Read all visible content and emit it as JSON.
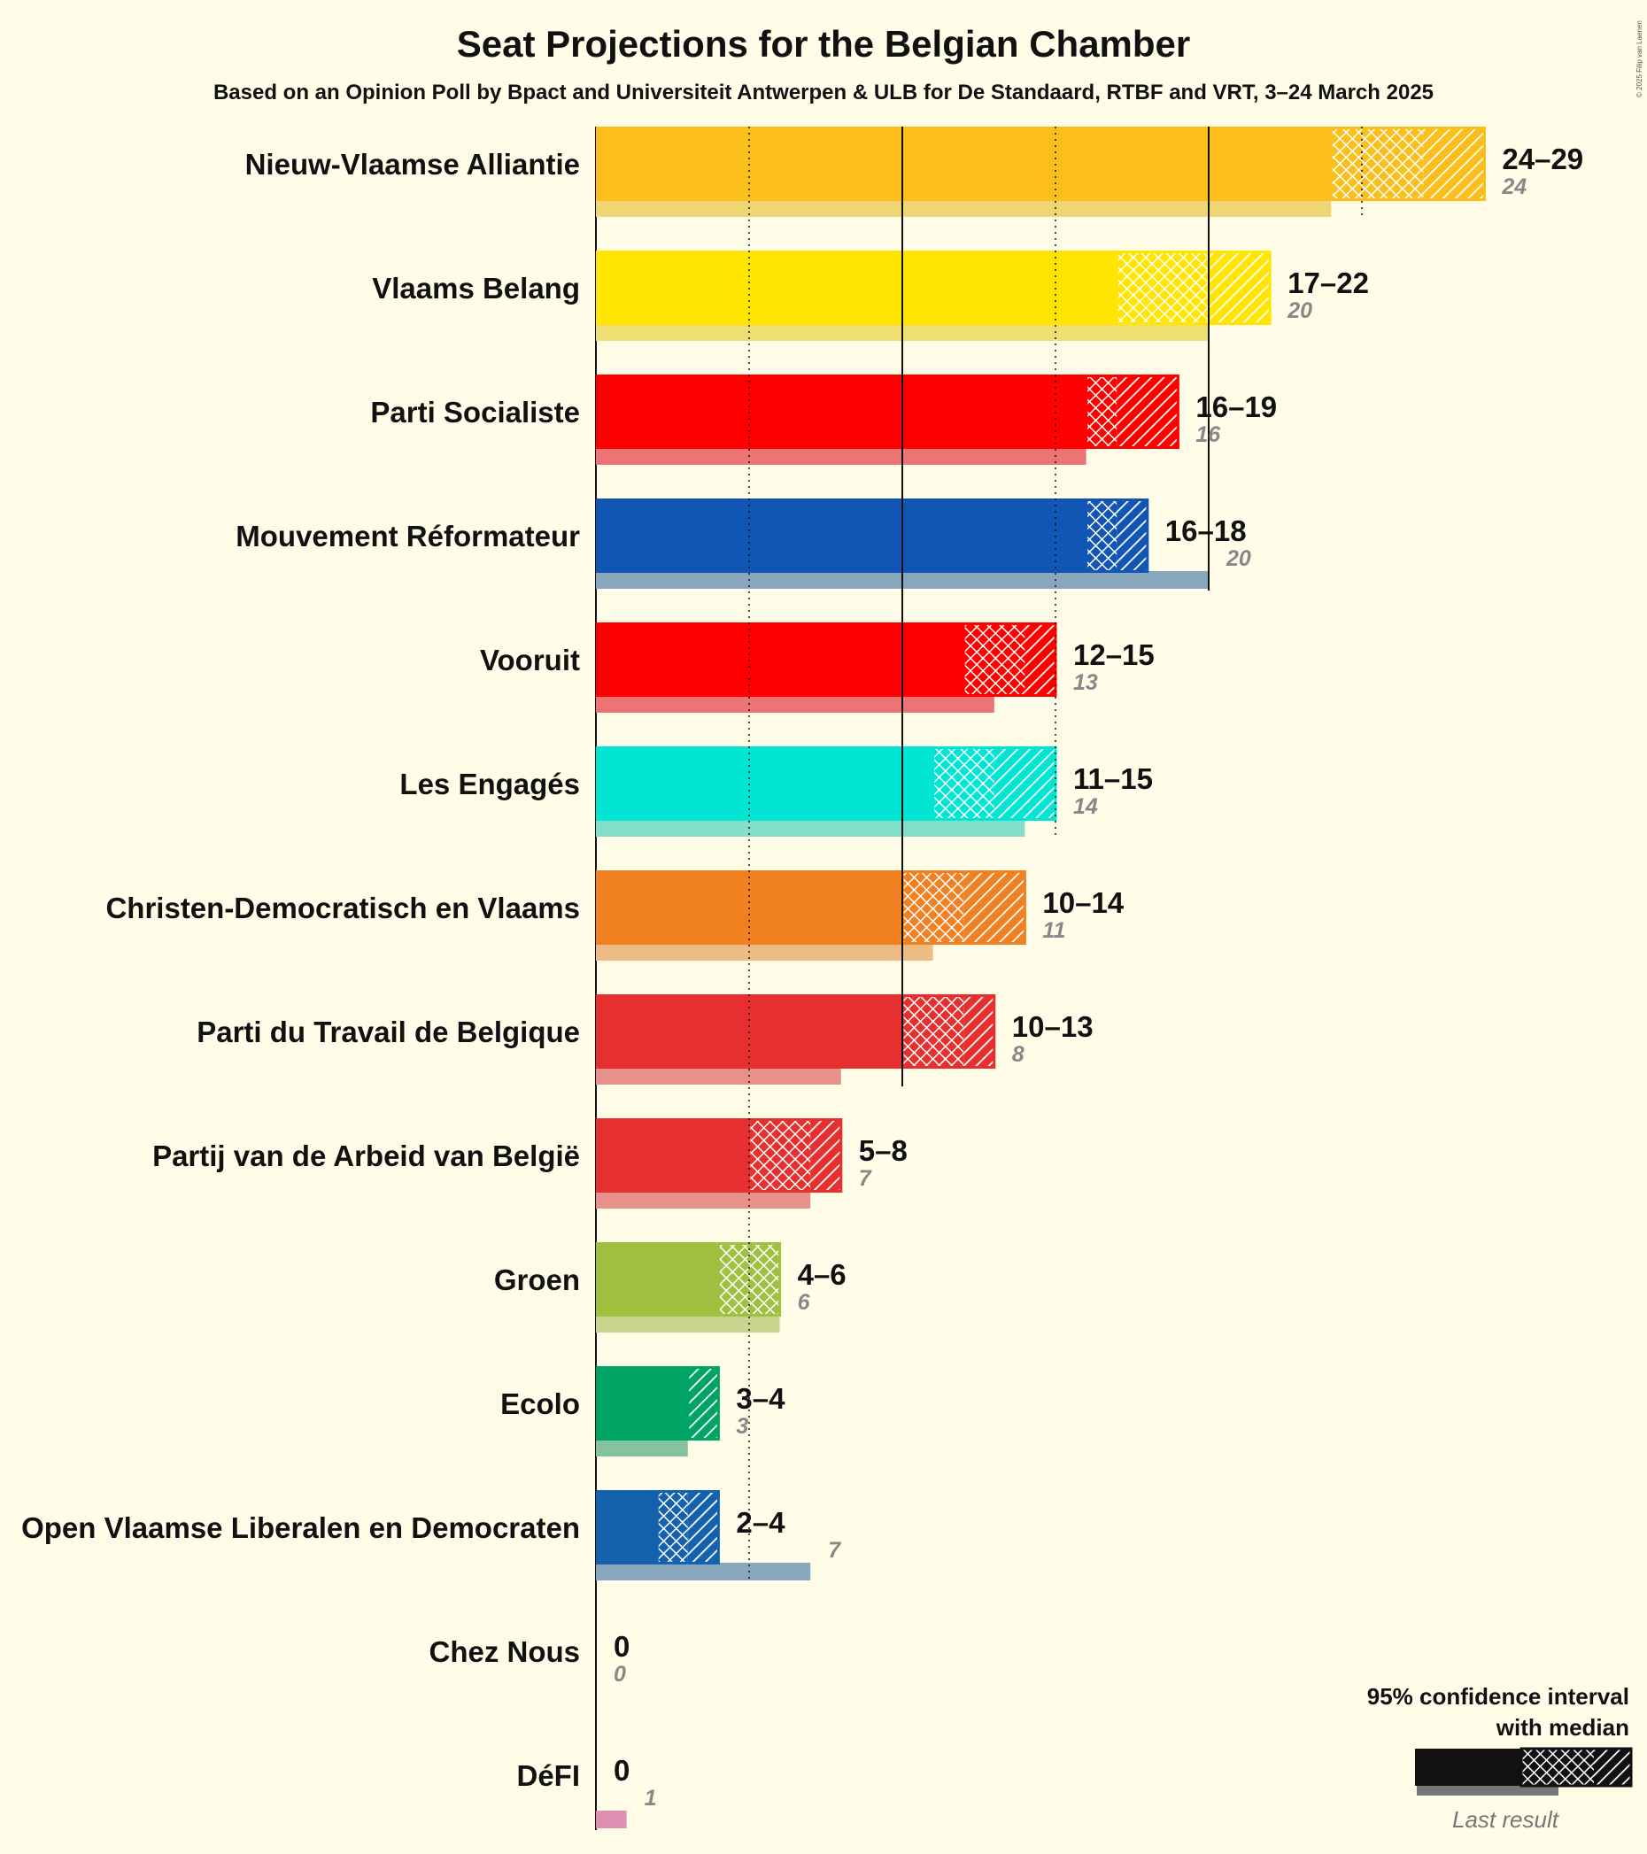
{
  "title": "Seat Projections for the Belgian Chamber",
  "subtitle": "Based on an Opinion Poll by Bpact and Universiteit Antwerpen & ULB for De Standaard, RTBF and VRT, 3–24 March 2025",
  "copyright": "© 2025 Filip van Laenen",
  "legend": {
    "line1": "95% confidence interval",
    "line2": "with median",
    "last_result": "Last result"
  },
  "chart_data": {
    "type": "bar",
    "orientation": "horizontal",
    "x_range": [
      0,
      29
    ],
    "gridlines": [
      5,
      10,
      15,
      20,
      25
    ],
    "parties": [
      {
        "name": "Nieuw-Vlaamse Alliantie",
        "low": 24,
        "median": 27,
        "high": 29,
        "last": 24,
        "range_label": "24–29",
        "color": "#fbbe1a",
        "last_color": "#f0d574"
      },
      {
        "name": "Vlaams Belang",
        "low": 17,
        "median": 20,
        "high": 22,
        "last": 20,
        "range_label": "17–22",
        "color": "#ffe500",
        "last_color": "#efdf73"
      },
      {
        "name": "Parti Socialiste",
        "low": 16,
        "median": 17,
        "high": 19,
        "last": 16,
        "range_label": "16–19",
        "color": "#ff0000",
        "last_color": "#ec7474"
      },
      {
        "name": "Mouvement Réformateur",
        "low": 16,
        "median": 17,
        "high": 18,
        "last": 20,
        "range_label": "16–18",
        "color": "#1155b5",
        "last_color": "#88a7bd"
      },
      {
        "name": "Vooruit",
        "low": 12,
        "median": 14,
        "high": 15,
        "last": 13,
        "range_label": "12–15",
        "color": "#ff0000",
        "last_color": "#ec7474"
      },
      {
        "name": "Les Engagés",
        "low": 11,
        "median": 13,
        "high": 15,
        "last": 14,
        "range_label": "11–15",
        "color": "#00e6d2",
        "last_color": "#83dfcc"
      },
      {
        "name": "Christen-Democratisch en Vlaams",
        "low": 10,
        "median": 12,
        "high": 14,
        "last": 11,
        "range_label": "10–14",
        "color": "#f08020",
        "last_color": "#edbb84"
      },
      {
        "name": "Parti du Travail de Belgique",
        "low": 10,
        "median": 12,
        "high": 13,
        "last": 8,
        "range_label": "10–13",
        "color": "#e5302f",
        "last_color": "#e8918a"
      },
      {
        "name": "Partij van de Arbeid van België",
        "low": 5,
        "median": 7,
        "high": 8,
        "last": 7,
        "range_label": "5–8",
        "color": "#e5302f",
        "last_color": "#e8918a"
      },
      {
        "name": "Groen",
        "low": 4,
        "median": 6,
        "high": 6,
        "last": 6,
        "range_label": "4–6",
        "color": "#a0c040",
        "last_color": "#c9d58f"
      },
      {
        "name": "Ecolo",
        "low": 3,
        "median": 3,
        "high": 4,
        "last": 3,
        "range_label": "3–4",
        "color": "#00a465",
        "last_color": "#85c29f"
      },
      {
        "name": "Open Vlaamse Liberalen en Democraten",
        "low": 2,
        "median": 3,
        "high": 4,
        "last": 7,
        "range_label": "2–4",
        "color": "#1461ad",
        "last_color": "#88a7bd"
      },
      {
        "name": "Chez Nous",
        "low": 0,
        "median": 0,
        "high": 0,
        "last": 0,
        "range_label": "0",
        "color": "#333333",
        "last_color": "#999999"
      },
      {
        "name": "DéFI",
        "low": 0,
        "median": 0,
        "high": 0,
        "last": 1,
        "range_label": "0",
        "color": "#dd3b8f",
        "last_color": "#dd8fb2"
      }
    ]
  }
}
